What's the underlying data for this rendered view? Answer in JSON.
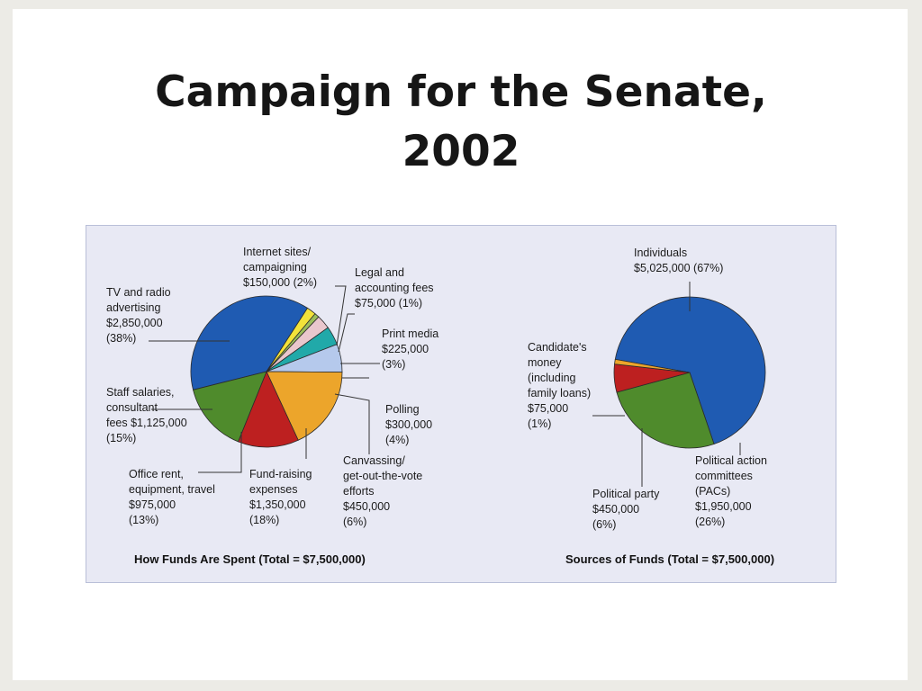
{
  "title": {
    "line1": "Campaign for the Senate,",
    "line2": "2002"
  },
  "chart_data": [
    {
      "type": "pie",
      "title": "How Funds Are Spent (Total = $7,500,000)",
      "slices": [
        {
          "label": [
            "TV and radio",
            "advertising",
            "$2,850,000",
            "(38%)"
          ],
          "value": 2850000,
          "percent": 38,
          "color": "#1f5bb2"
        },
        {
          "label": [
            "Internet sites/",
            "campaigning",
            "$150,000 (2%)"
          ],
          "value": 150000,
          "percent": 2,
          "color": "#f3e23a"
        },
        {
          "label": [
            "Legal and",
            "accounting fees",
            "$75,000 (1%)"
          ],
          "value": 75000,
          "percent": 1,
          "color": "#9bbd5a"
        },
        {
          "label": [
            "Print media",
            "$225,000",
            "(3%)"
          ],
          "value": 225000,
          "percent": 3,
          "color": "#e9c7cd"
        },
        {
          "label": [
            "Polling",
            "$300,000",
            "(4%)"
          ],
          "value": 300000,
          "percent": 4,
          "color": "#21a9a9"
        },
        {
          "label": [
            "Canvassing/",
            "get-out-the-vote",
            "efforts",
            "$450,000",
            "(6%)"
          ],
          "value": 450000,
          "percent": 6,
          "color": "#b5c9ec"
        },
        {
          "label": [
            "Fund-raising",
            "expenses",
            "$1,350,000",
            "(18%)"
          ],
          "value": 1350000,
          "percent": 18,
          "color": "#eca52b"
        },
        {
          "label": [
            "Office rent,",
            "equipment, travel",
            "$975,000",
            "(13%)"
          ],
          "value": 975000,
          "percent": 13,
          "color": "#bd2020"
        },
        {
          "label": [
            "Staff salaries,",
            "consultant",
            "fees $1,125,000",
            "(15%)"
          ],
          "value": 1125000,
          "percent": 15,
          "color": "#4f8b2c"
        }
      ]
    },
    {
      "type": "pie",
      "title": "Sources of Funds (Total = $7,500,000)",
      "slices": [
        {
          "label": [
            "Individuals",
            "$5,025,000 (67%)"
          ],
          "value": 5025000,
          "percent": 67,
          "color": "#1f5bb2"
        },
        {
          "label": [
            "Political action",
            "committees",
            "(PACs)",
            "$1,950,000",
            "(26%)"
          ],
          "value": 1950000,
          "percent": 26,
          "color": "#4f8b2c"
        },
        {
          "label": [
            "Political party",
            "$450,000",
            "(6%)"
          ],
          "value": 450000,
          "percent": 6,
          "color": "#bd2020"
        },
        {
          "label": [
            "Candidate's",
            "money",
            "(including",
            "family loans)",
            "$75,000",
            "(1%)"
          ],
          "value": 75000,
          "percent": 1,
          "color": "#eca52b"
        }
      ]
    }
  ]
}
